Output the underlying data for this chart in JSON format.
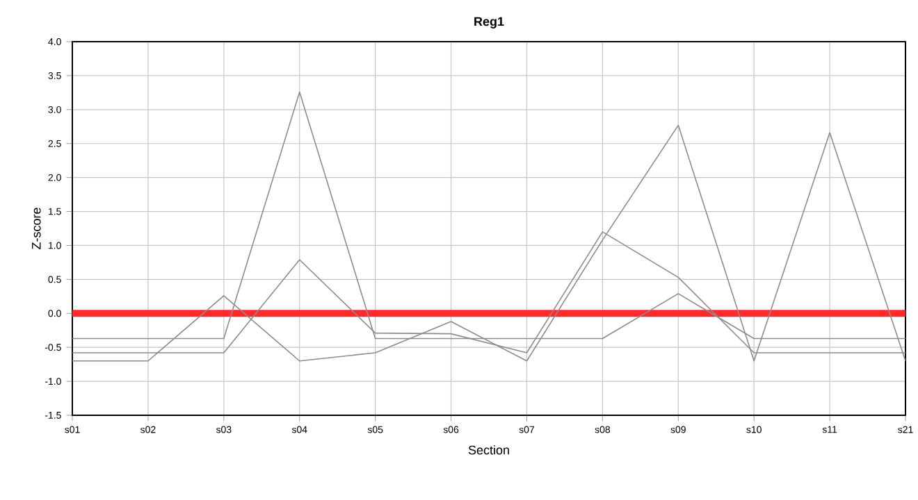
{
  "chart_data": {
    "type": "line",
    "title": "Reg1",
    "xlabel": "Section",
    "ylabel": "Z-score",
    "categories": [
      "s01",
      "s02",
      "s03",
      "s04",
      "s05",
      "s06",
      "s07",
      "s08",
      "s09",
      "s10",
      "s11",
      "s21"
    ],
    "series": [
      {
        "color": "#8c8c8c",
        "values": [
          -0.37,
          -0.37,
          -0.37,
          3.26,
          -0.37,
          -0.37,
          -0.37,
          -0.37,
          0.29,
          -0.37,
          -0.37,
          -0.37
        ]
      },
      {
        "color": "#8c8c8c",
        "values": [
          -0.58,
          -0.58,
          -0.58,
          0.79,
          -0.29,
          -0.3,
          -0.58,
          1.2,
          0.53,
          -0.58,
          -0.58,
          -0.58
        ]
      },
      {
        "color": "#8c8c8c",
        "values": [
          -0.7,
          -0.7,
          0.26,
          -0.7,
          -0.58,
          -0.12,
          -0.7,
          1.08,
          2.77,
          -0.7,
          2.66,
          -0.7
        ]
      }
    ],
    "ylim": [
      -1.5,
      4.0
    ],
    "yticks": [
      {
        "value": -1.5,
        "label": "-1.5"
      },
      {
        "value": -1.0,
        "label": "-1.0"
      },
      {
        "value": -0.5,
        "label": "-0.5"
      },
      {
        "value": 0,
        "label": "0.0"
      },
      {
        "value": 0.5,
        "label": "0.5"
      },
      {
        "value": 1.0,
        "label": "1.0"
      },
      {
        "value": 1.5,
        "label": "1.5"
      },
      {
        "value": 2.0,
        "label": "2.0"
      },
      {
        "value": 2.5,
        "label": "2.5"
      },
      {
        "value": 3.0,
        "label": "3.0"
      },
      {
        "value": 3.5,
        "label": "3.5"
      },
      {
        "value": 4.0,
        "label": "4.0"
      }
    ],
    "ref_lines": [
      {
        "axis": "y",
        "value": 0,
        "color": "#ff2a2a"
      }
    ],
    "grid": true,
    "marker": "none",
    "line_style": "solid"
  }
}
